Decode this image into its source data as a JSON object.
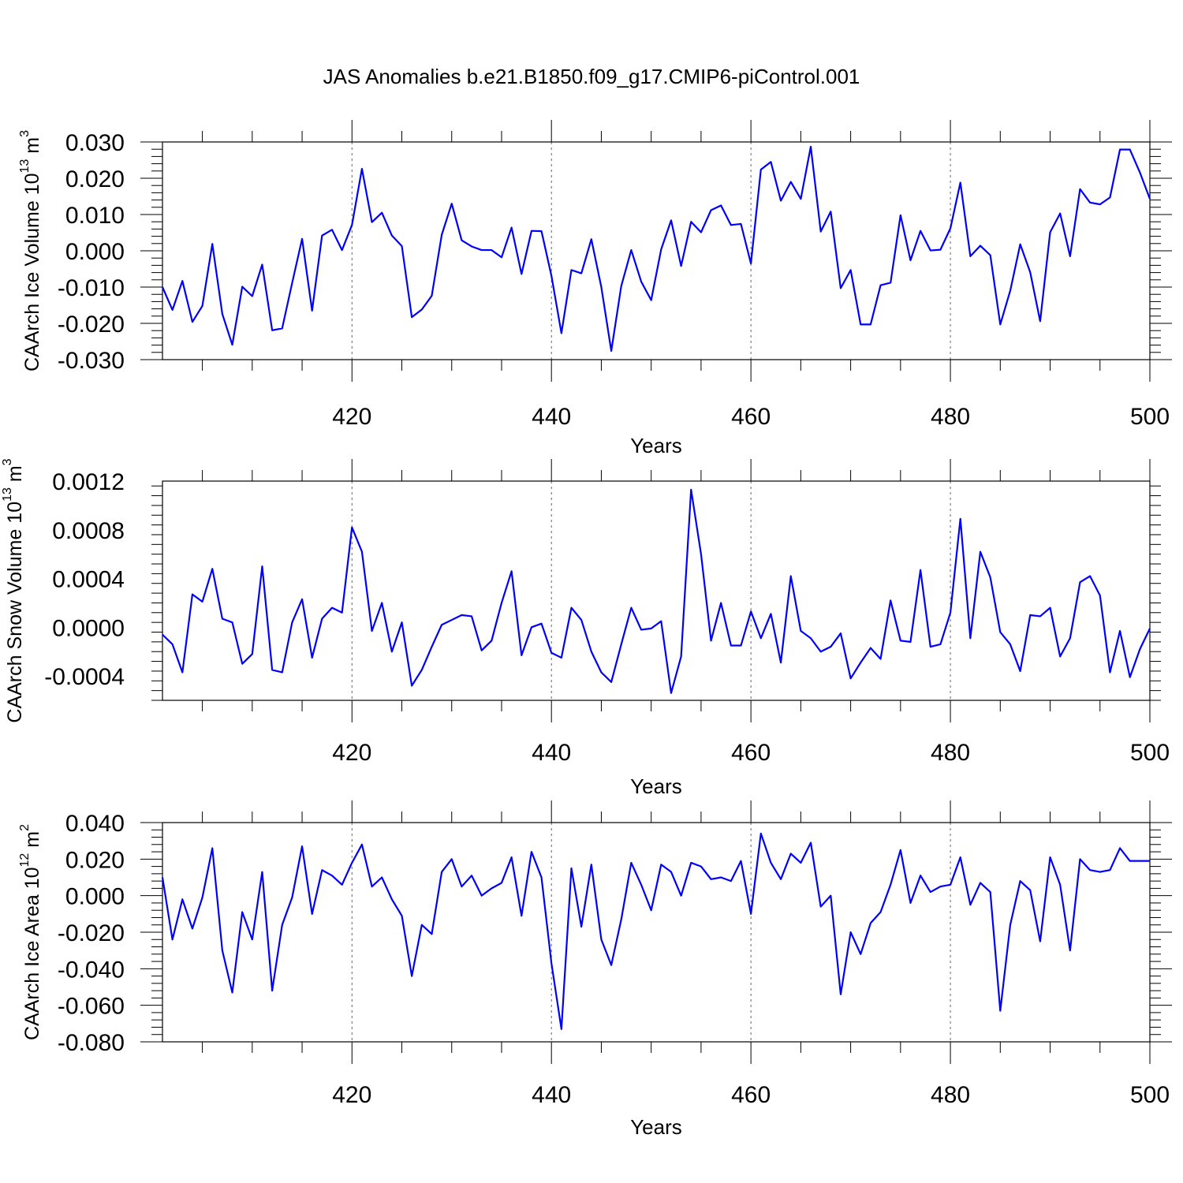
{
  "title": "JAS Anomalies b.e21.B1850.f09_g17.CMIP6-piControl.001",
  "chart_data": [
    {
      "type": "line",
      "ylabel": "CAArch Ice Volume 10",
      "ylabel_exp": "13",
      "ylabel_unit": " m",
      "ylabel_unit_exp": "3",
      "xlabel": "Years",
      "xlim": [
        401,
        500
      ],
      "ylim": [
        -0.03,
        0.03
      ],
      "yticks": [
        -0.03,
        -0.02,
        -0.01,
        0.0,
        0.01,
        0.02,
        0.03
      ],
      "ytick_labels": [
        "-0.030",
        "-0.020",
        "-0.010",
        "0.000",
        "0.010",
        "0.020",
        "0.030"
      ],
      "xticks": [
        420,
        440,
        460,
        480,
        500
      ],
      "xtick_labels": [
        "420",
        "440",
        "460",
        "480",
        "500"
      ],
      "grid_x": [
        420,
        440,
        460,
        480
      ],
      "x_start": 401,
      "series": [
        {
          "color": "#0000ff",
          "values": [
            -0.01,
            -0.0163,
            -0.0083,
            -0.0196,
            -0.0152,
            0.0019,
            -0.0174,
            -0.0259,
            -0.0099,
            -0.0125,
            -0.0038,
            -0.0219,
            -0.0214,
            -0.0089,
            0.0033,
            -0.0165,
            0.0042,
            0.0058,
            0.0002,
            0.0071,
            0.0226,
            0.0079,
            0.0105,
            0.0042,
            0.0013,
            -0.0183,
            -0.0162,
            -0.0124,
            0.0044,
            0.013,
            0.0029,
            0.0012,
            0.0002,
            0.0002,
            -0.0018,
            0.0064,
            -0.0064,
            0.0055,
            0.0054,
            -0.0069,
            -0.0227,
            -0.0053,
            -0.0062,
            0.0032,
            -0.01,
            -0.0276,
            -0.0097,
            0.0002,
            -0.0085,
            -0.0136,
            0.0004,
            0.0084,
            -0.0042,
            0.008,
            0.0051,
            0.0112,
            0.0125,
            0.0071,
            0.0074,
            -0.0035,
            0.0224,
            0.0245,
            0.0138,
            0.019,
            0.0143,
            0.0287,
            0.0053,
            0.0108,
            -0.0103,
            -0.0053,
            -0.0203,
            -0.0203,
            -0.0095,
            -0.0088,
            0.0098,
            -0.0026,
            0.0055,
            0.0001,
            0.0003,
            0.0062,
            0.0188,
            -0.0015,
            0.0014,
            -0.0012,
            -0.0203,
            -0.011,
            0.0018,
            -0.0059,
            -0.0194,
            0.0051,
            0.0103,
            -0.0015,
            0.017,
            0.0133,
            0.0128,
            0.0147,
            0.0279,
            0.0279,
            0.0216,
            0.0143
          ]
        }
      ]
    },
    {
      "type": "line",
      "ylabel": "CAArch Snow Volume 10",
      "ylabel_exp": "13",
      "ylabel_unit": " m",
      "ylabel_unit_exp": "3",
      "xlabel": "Years",
      "xlim": [
        401,
        500
      ],
      "ylim": [
        -0.0006,
        0.0012
      ],
      "yticks": [
        -0.0004,
        0.0,
        0.0004,
        0.0008,
        0.0012
      ],
      "ytick_labels": [
        "-0.0004",
        "0.0000",
        "0.0004",
        "0.0008",
        "0.0012"
      ],
      "xticks": [
        420,
        440,
        460,
        480,
        500
      ],
      "xtick_labels": [
        "420",
        "440",
        "460",
        "480",
        "500"
      ],
      "grid_x": [
        420,
        440,
        460,
        480
      ],
      "x_start": 401,
      "series": [
        {
          "color": "#0000ff",
          "values": [
            -6e-05,
            -0.00014,
            -0.00037,
            0.00027,
            0.00021,
            0.00048,
            7e-05,
            4e-05,
            -0.0003,
            -0.00022,
            0.0005,
            -0.00035,
            -0.00037,
            4e-05,
            0.00023,
            -0.00025,
            7e-05,
            0.00016,
            0.00012,
            0.00082,
            0.00062,
            -3e-05,
            0.0002,
            -0.0002,
            4e-05,
            -0.00048,
            -0.00035,
            -0.00016,
            2e-05,
            6e-05,
            0.0001,
            9e-05,
            -0.00019,
            -0.00011,
            0.0002,
            0.00046,
            -0.00023,
            0.0,
            3e-05,
            -0.00021,
            -0.00025,
            0.00016,
            6e-05,
            -0.0002,
            -0.00037,
            -0.00045,
            -0.00014,
            0.00016,
            -2e-05,
            -1e-05,
            5e-05,
            -0.00054,
            -0.00024,
            0.00113,
            0.0006,
            -0.00011,
            0.0002,
            -0.00015,
            -0.00015,
            0.00013,
            -9e-05,
            0.00011,
            -0.00029,
            0.00042,
            -3e-05,
            -9e-05,
            -0.0002,
            -0.00016,
            -5e-05,
            -0.00042,
            -0.00029,
            -0.00017,
            -0.00026,
            0.00022,
            -0.00011,
            -0.00012,
            0.00047,
            -0.00016,
            -0.00014,
            0.00012,
            0.00089,
            -9e-05,
            0.00062,
            0.00041,
            -4e-05,
            -0.00014,
            -0.00036,
            0.0001,
            9e-05,
            0.00016,
            -0.00024,
            -9e-05,
            0.00037,
            0.00042,
            0.00026,
            -0.00037,
            -3e-05,
            -0.00041,
            -0.00018,
            -1e-05
          ]
        }
      ]
    },
    {
      "type": "line",
      "ylabel": "CAArch Ice Area 10",
      "ylabel_exp": "12",
      "ylabel_unit": " m",
      "ylabel_unit_exp": "2",
      "xlabel": "Years",
      "xlim": [
        401,
        500
      ],
      "ylim": [
        -0.08,
        0.04
      ],
      "yticks": [
        -0.08,
        -0.06,
        -0.04,
        -0.02,
        0.0,
        0.02,
        0.04
      ],
      "ytick_labels": [
        "-0.080",
        "-0.060",
        "-0.040",
        "-0.020",
        "0.000",
        "0.020",
        "0.040"
      ],
      "xticks": [
        420,
        440,
        460,
        480,
        500
      ],
      "xtick_labels": [
        "420",
        "440",
        "460",
        "480",
        "500"
      ],
      "grid_x": [
        420,
        440,
        460,
        480
      ],
      "x_start": 401,
      "series": [
        {
          "color": "#0000ff",
          "values": [
            0.01,
            -0.024,
            -0.002,
            -0.018,
            -0.001,
            0.026,
            -0.03,
            -0.053,
            -0.009,
            -0.024,
            0.013,
            -0.052,
            -0.016,
            -0.001,
            0.027,
            -0.01,
            0.014,
            0.011,
            0.006,
            0.018,
            0.028,
            0.005,
            0.01,
            -0.002,
            -0.011,
            -0.044,
            -0.016,
            -0.021,
            0.013,
            0.02,
            0.005,
            0.011,
            0.0,
            0.004,
            0.007,
            0.021,
            -0.011,
            0.024,
            0.01,
            -0.037,
            -0.073,
            0.015,
            -0.017,
            0.017,
            -0.024,
            -0.038,
            -0.013,
            0.018,
            0.006,
            -0.008,
            0.017,
            0.013,
            0.0,
            0.018,
            0.016,
            0.009,
            0.01,
            0.008,
            0.019,
            -0.01,
            0.034,
            0.018,
            0.009,
            0.023,
            0.018,
            0.029,
            -0.006,
            0.0,
            -0.054,
            -0.02,
            -0.032,
            -0.015,
            -0.009,
            0.006,
            0.025,
            -0.004,
            0.011,
            0.002,
            0.005,
            0.006,
            0.021,
            -0.005,
            0.007,
            0.002,
            -0.063,
            -0.016,
            0.008,
            0.003,
            -0.025,
            0.021,
            0.006,
            -0.03,
            0.02,
            0.014,
            0.013,
            0.014,
            0.026,
            0.019,
            0.019,
            0.019
          ]
        }
      ]
    }
  ]
}
